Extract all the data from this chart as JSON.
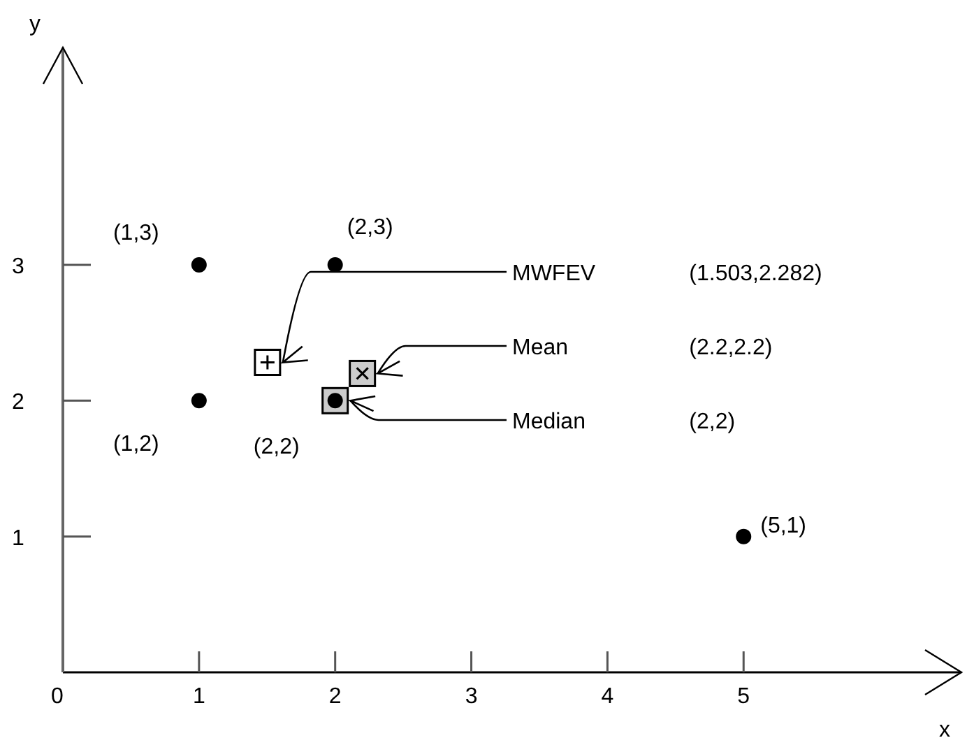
{
  "chart_data": {
    "type": "scatter",
    "xlabel": "x",
    "ylabel": "y",
    "xlim": [
      0,
      6.6
    ],
    "ylim": [
      0,
      4.6
    ],
    "xticks": [
      0,
      1,
      2,
      3,
      4,
      5
    ],
    "yticks": [
      1,
      2,
      3
    ],
    "grid": false,
    "series": [
      {
        "color": "#000000",
        "marker": "circle",
        "x": [
          1,
          2,
          1,
          2,
          5
        ],
        "values": [
          3,
          3,
          2,
          2,
          1
        ]
      },
      {
        "name": "MWFEV",
        "color": "#ffffff",
        "marker": "square",
        "x": [
          1.503
        ],
        "values": [
          2.282
        ]
      },
      {
        "name": "Mean",
        "color": "#cccccc",
        "marker": "square",
        "x": [
          2.2
        ],
        "values": [
          2.2
        ]
      },
      {
        "name": "Median",
        "color": "#cccccc",
        "marker": "square",
        "x": [
          2
        ],
        "values": [
          2
        ]
      }
    ],
    "annotations": [
      {
        "text": "(1,3)",
        "x": 1,
        "y": 3
      },
      {
        "text": "(2,3)",
        "x": 2,
        "y": 3
      },
      {
        "text": "(1,2)",
        "x": 1,
        "y": 2
      },
      {
        "text": "(2,2)",
        "x": 2,
        "y": 2
      },
      {
        "text": "(5,1)",
        "x": 5,
        "y": 1
      },
      "(1.503,2.282)",
      "(2.2,2.2)",
      "(2,2)"
    ]
  }
}
